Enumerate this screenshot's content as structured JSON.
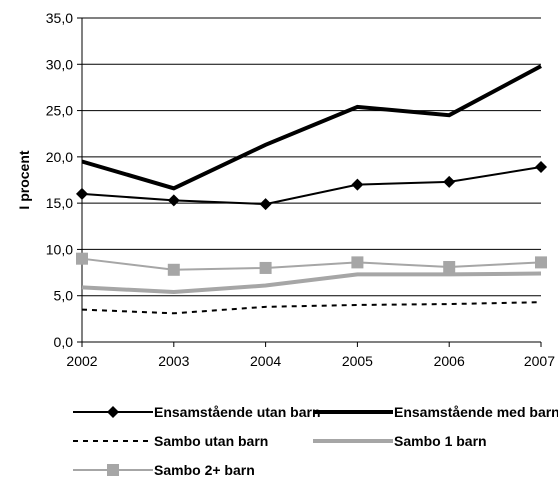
{
  "chart_data": {
    "type": "line",
    "title": "",
    "xlabel": "",
    "ylabel": "I procent",
    "x": [
      "2002",
      "2003",
      "2004",
      "2005",
      "2006",
      "2007"
    ],
    "y_ticks": [
      "0,0",
      "5,0",
      "10,0",
      "15,0",
      "20,0",
      "25,0",
      "30,0",
      "35,0"
    ],
    "ylim": [
      0,
      35
    ],
    "grid": "horizontal",
    "legend_position": "bottom",
    "series": [
      {
        "name": "Ensamstående utan barn",
        "values": [
          16.0,
          15.3,
          14.9,
          17.0,
          17.3,
          18.9
        ],
        "color": "#000000",
        "style": "solid-thin",
        "marker": "diamond"
      },
      {
        "name": "Ensamstående med barn",
        "values": [
          19.5,
          16.6,
          21.3,
          25.4,
          24.5,
          29.8
        ],
        "color": "#000000",
        "style": "solid-thick",
        "marker": "none"
      },
      {
        "name": "Sambo utan barn",
        "values": [
          3.5,
          3.1,
          3.8,
          4.0,
          4.1,
          4.3
        ],
        "color": "#000000",
        "style": "dashed",
        "marker": "none"
      },
      {
        "name": "Sambo 1 barn",
        "values": [
          5.9,
          5.4,
          6.1,
          7.3,
          7.3,
          7.4
        ],
        "color": "#a6a6a6",
        "style": "solid-thick",
        "marker": "none"
      },
      {
        "name": "Sambo 2+ barn",
        "values": [
          9.0,
          7.8,
          8.0,
          8.6,
          8.1,
          8.6
        ],
        "color": "#a6a6a6",
        "style": "solid-thin",
        "marker": "square"
      }
    ]
  }
}
